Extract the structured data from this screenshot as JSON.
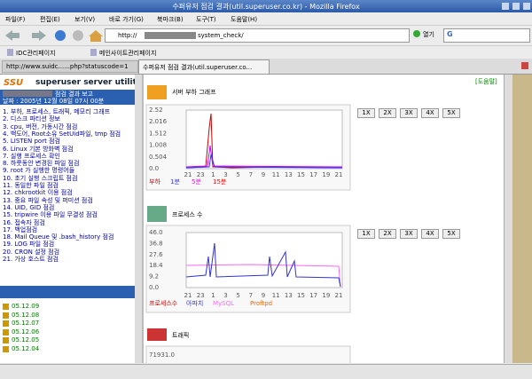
{
  "window": {
    "title": "수퍼유저 점검 결과(util.superuser.co.kr) - Mozilla Firefox"
  },
  "menu": [
    "파일(F)",
    "편집(E)",
    "보기(V)",
    "바로 가기(G)",
    "북마크(B)",
    "도구(T)",
    "도움말(H)"
  ],
  "toolbar": {
    "url_prefix": "http://",
    "url_suffix": "system_check/",
    "go": "열기",
    "search": "G"
  },
  "bookmarks": [
    "IDC관리페이지",
    "메인사이트관리페이지"
  ],
  "tabs": [
    "http://www.suidc......php?statuscode=1",
    "수퍼유저 점검 결과(util.superuser.co..."
  ],
  "sidebar": {
    "logo": "SSU",
    "brand": "superuser server utility",
    "report_title": "점검 결과 보고",
    "date": "날짜 : 2005년 12월 08일 07시 00분",
    "items": [
      "1. 부하, 프로세스, 트래픽, 메모리 그래프",
      "2. 디스크 파티션 정보",
      "3. cpu, 버전, 가동시간 점검",
      "4. 백도어, Root소유 SetUid파일, tmp 점검",
      "5. LISTEN port 점검",
      "6. Linux 기본 방화벽 점검",
      "7. 실행 프로세스 확인",
      "8. 하룻동안 변경된 파일 점검",
      "9. root 가 실행한 명령어들",
      "10. 초기 실행 스크립트 점검",
      "11. 동일한 파일 점검",
      "12. chkrootkit 이용 점검",
      "13. 중요 파일 속성 및 퍼미션 점검",
      "14. UID, GID 점검",
      "15. tripwire 이용 파일 무결성 점검",
      "16. 접속자 점검",
      "17. 백업점검",
      "18. Mail Queue 및 .bash_history 점검",
      "19. LOG 파일 점검",
      "20. CRON 설정 점검",
      "21. 가상 호스트 점검"
    ],
    "dates": [
      "05.12.09",
      "05.12.08",
      "05.12.07",
      "05.12.06",
      "05.12.05",
      "05.12.04"
    ]
  },
  "content": {
    "help": "[도움말]",
    "zoom_buttons": [
      "1X",
      "2X",
      "3X",
      "4X",
      "5X"
    ],
    "graphs": [
      {
        "title": "서버 부하 그래프",
        "yticks": [
          "2.52",
          "2.016",
          "1.512",
          "1.008",
          "0.504",
          "0.0"
        ],
        "xticks": [
          "21",
          "23",
          "1",
          "3",
          "5",
          "7",
          "9",
          "11",
          "13",
          "15",
          "17",
          "19",
          "21"
        ],
        "legend": [
          "부하",
          "1분",
          "5분",
          "15분"
        ]
      },
      {
        "title": "프로세스 수",
        "yticks": [
          "46.0",
          "36.8",
          "27.6",
          "18.4",
          "9.2",
          "0.0"
        ],
        "xticks": [
          "21",
          "23",
          "1",
          "3",
          "5",
          "7",
          "9",
          "11",
          "13",
          "15",
          "17",
          "19",
          "21"
        ],
        "legend": [
          "프로세스수",
          "아파치",
          "MySQL",
          "Proftpd"
        ]
      },
      {
        "title": "트래픽",
        "yticks": [
          "71931.0"
        ]
      }
    ]
  }
}
